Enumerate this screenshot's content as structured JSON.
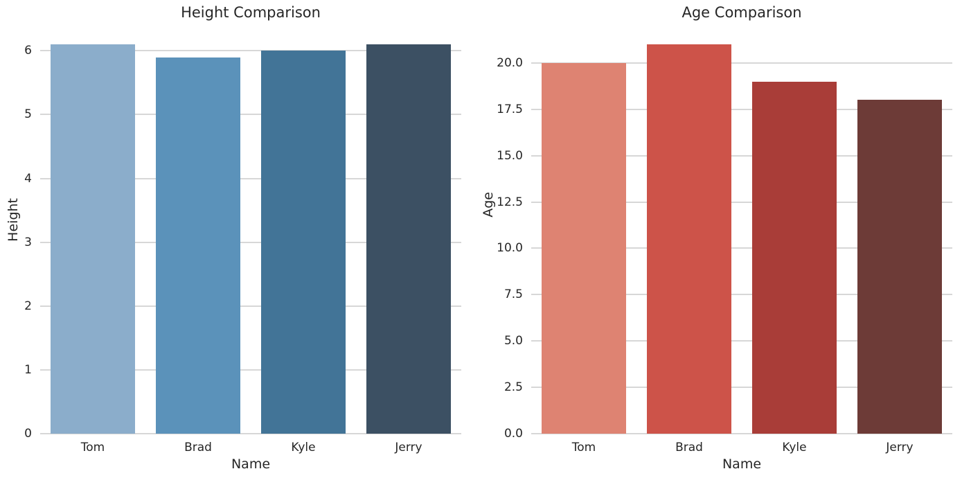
{
  "colors": {
    "background": "#ffffff",
    "grid": "#d7d7d7",
    "text": "#262626"
  },
  "chart_data": [
    {
      "type": "bar",
      "title": "Height Comparison",
      "xlabel": "Name",
      "ylabel": "Height",
      "categories": [
        "Tom",
        "Brad",
        "Kyle",
        "Jerry"
      ],
      "values": [
        6.1,
        5.9,
        6.0,
        6.1
      ],
      "bar_colors": [
        "#8badcb",
        "#5b92ba",
        "#427497",
        "#3c5063"
      ],
      "ylim": [
        0,
        6.405
      ],
      "yticks": [
        0,
        1,
        2,
        3,
        4,
        5,
        6
      ],
      "ytick_labels": [
        "0",
        "1",
        "2",
        "3",
        "4",
        "5",
        "6"
      ],
      "grid": "horizontal",
      "legend": "none"
    },
    {
      "type": "bar",
      "title": "Age Comparison",
      "xlabel": "Name",
      "ylabel": "Age",
      "categories": [
        "Tom",
        "Brad",
        "Kyle",
        "Jerry"
      ],
      "values": [
        20,
        21,
        19,
        18
      ],
      "bar_colors": [
        "#de8372",
        "#cd5349",
        "#a93d38",
        "#6d3b37"
      ],
      "ylim": [
        0,
        22.05
      ],
      "yticks": [
        0,
        2.5,
        5,
        7.5,
        10,
        12.5,
        15,
        17.5,
        20
      ],
      "ytick_labels": [
        "0.0",
        "2.5",
        "5.0",
        "7.5",
        "10.0",
        "12.5",
        "15.0",
        "17.5",
        "20.0"
      ],
      "grid": "horizontal",
      "legend": "none"
    }
  ]
}
